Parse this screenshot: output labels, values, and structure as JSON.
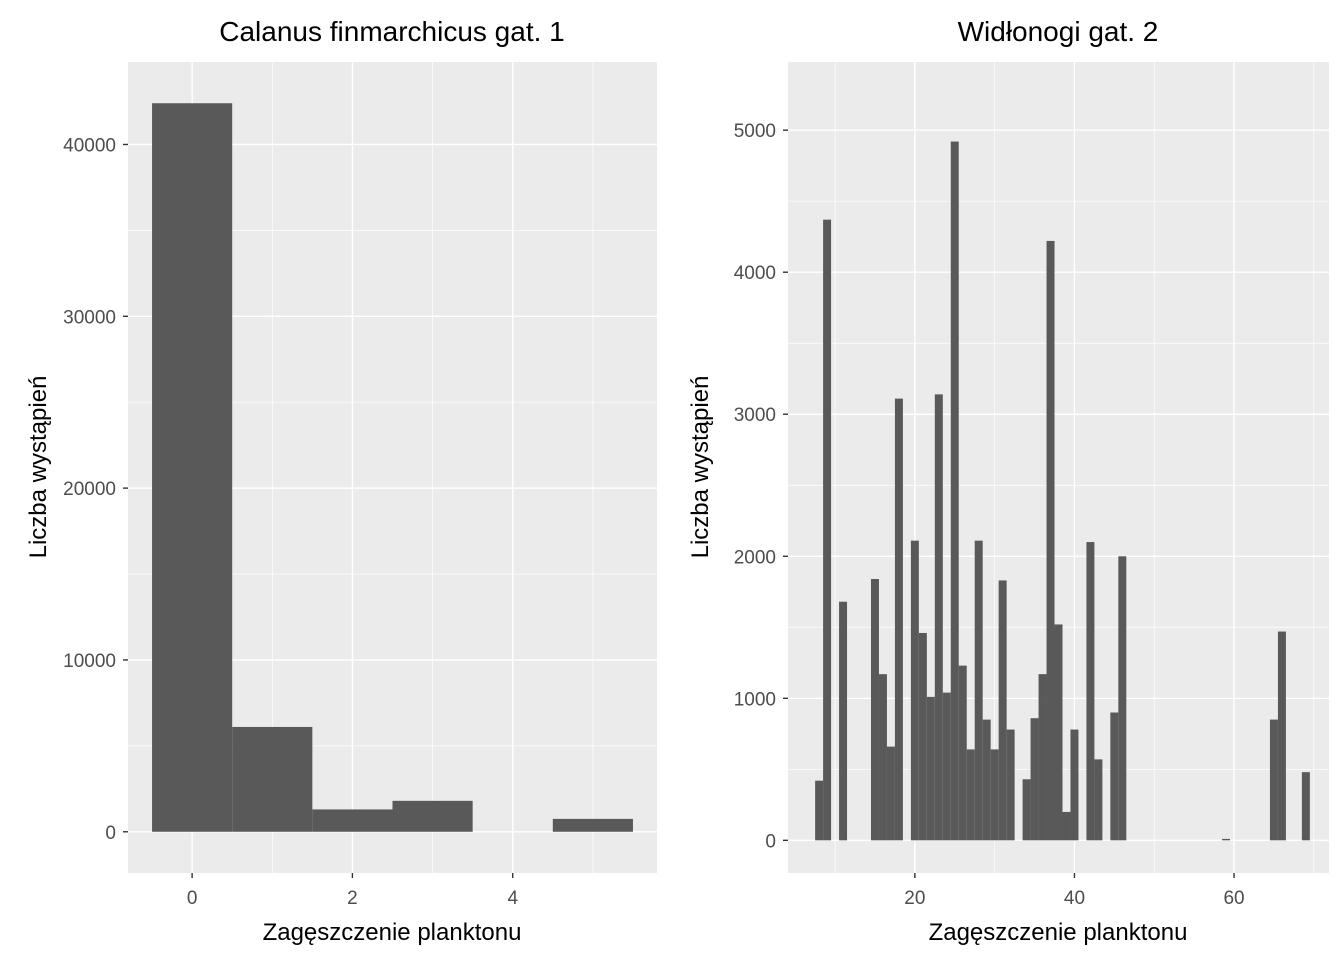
{
  "chart_data": [
    {
      "type": "bar",
      "title": "Calanus finmarchicus gat. 1",
      "xlabel": "Zagęszczenie planktonu",
      "ylabel": "Liczba wystąpień",
      "xlim": [
        -0.8,
        5.8
      ],
      "ylim": [
        -2400,
        44800
      ],
      "xticks": [
        0,
        2,
        4
      ],
      "yticks": [
        0,
        10000,
        20000,
        30000,
        40000
      ],
      "binwidth": 1,
      "grid": true,
      "bins": [
        {
          "x": 0,
          "count": 42400
        },
        {
          "x": 1,
          "count": 6100
        },
        {
          "x": 2,
          "count": 1300
        },
        {
          "x": 3,
          "count": 1800
        },
        {
          "x": 4,
          "count": 0
        },
        {
          "x": 5,
          "count": 750
        }
      ]
    },
    {
      "type": "bar",
      "title": "Widłonogi gat. 2",
      "xlabel": "Zagęszczenie planktonu",
      "ylabel": "Liczba wystąpień",
      "xlim": [
        4.1,
        71.9
      ],
      "ylim": [
        -230,
        5480
      ],
      "xticks": [
        20,
        40,
        60
      ],
      "yticks": [
        0,
        1000,
        2000,
        3000,
        4000,
        5000
      ],
      "binwidth": 1,
      "grid": true,
      "bins": [
        {
          "x": 8,
          "count": 420
        },
        {
          "x": 9,
          "count": 4370
        },
        {
          "x": 10,
          "count": 0
        },
        {
          "x": 11,
          "count": 1680
        },
        {
          "x": 12,
          "count": 0
        },
        {
          "x": 13,
          "count": 0
        },
        {
          "x": 14,
          "count": 0
        },
        {
          "x": 15,
          "count": 1840
        },
        {
          "x": 16,
          "count": 1170
        },
        {
          "x": 17,
          "count": 660
        },
        {
          "x": 18,
          "count": 3110
        },
        {
          "x": 19,
          "count": 0
        },
        {
          "x": 20,
          "count": 2110
        },
        {
          "x": 21,
          "count": 1460
        },
        {
          "x": 22,
          "count": 1010
        },
        {
          "x": 23,
          "count": 3140
        },
        {
          "x": 24,
          "count": 1040
        },
        {
          "x": 25,
          "count": 4920
        },
        {
          "x": 26,
          "count": 1230
        },
        {
          "x": 27,
          "count": 640
        },
        {
          "x": 28,
          "count": 2110
        },
        {
          "x": 29,
          "count": 850
        },
        {
          "x": 30,
          "count": 640
        },
        {
          "x": 31,
          "count": 1830
        },
        {
          "x": 32,
          "count": 780
        },
        {
          "x": 33,
          "count": 0
        },
        {
          "x": 34,
          "count": 430
        },
        {
          "x": 35,
          "count": 860
        },
        {
          "x": 36,
          "count": 1170
        },
        {
          "x": 37,
          "count": 4220
        },
        {
          "x": 38,
          "count": 1520
        },
        {
          "x": 39,
          "count": 200
        },
        {
          "x": 40,
          "count": 780
        },
        {
          "x": 41,
          "count": 0
        },
        {
          "x": 42,
          "count": 2100
        },
        {
          "x": 43,
          "count": 570
        },
        {
          "x": 44,
          "count": 0
        },
        {
          "x": 45,
          "count": 900
        },
        {
          "x": 46,
          "count": 2000
        },
        {
          "x": 59,
          "count": 10
        },
        {
          "x": 65,
          "count": 850
        },
        {
          "x": 66,
          "count": 1470
        },
        {
          "x": 67,
          "count": 0
        },
        {
          "x": 68,
          "count": 0
        },
        {
          "x": 69,
          "count": 480
        }
      ]
    }
  ]
}
